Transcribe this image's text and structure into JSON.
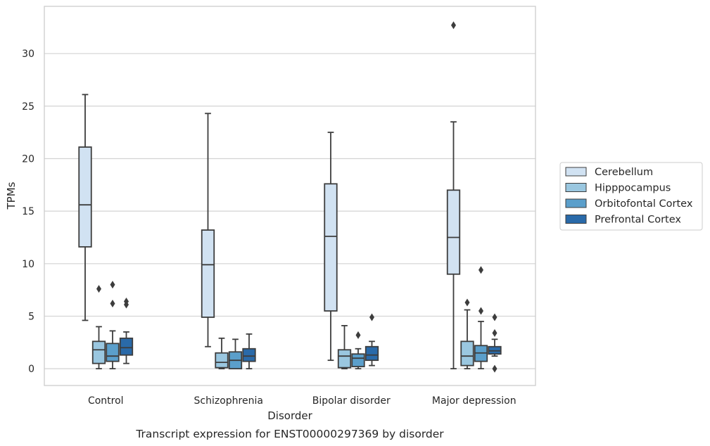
{
  "chart_data": {
    "type": "box",
    "caption": "Transcript expression for ENST00000297369 by disorder",
    "xlabel": "Disorder",
    "ylabel": "TPMs",
    "ylim": [
      -1.6,
      34.5
    ],
    "yticks": [
      0,
      5,
      10,
      15,
      20,
      25,
      30
    ],
    "grid": true,
    "legend_placement": "right",
    "categories": [
      "Control",
      "Schizophrenia",
      "Bipolar disorder",
      "Major depression"
    ],
    "series": [
      {
        "name": "Cerebellum",
        "color": "#d1e2f2",
        "boxes": [
          {
            "whislo": 4.6,
            "q1": 11.6,
            "med": 15.6,
            "q3": 21.1,
            "whishi": 26.1,
            "fliers": []
          },
          {
            "whislo": 2.1,
            "q1": 4.9,
            "med": 9.9,
            "q3": 13.2,
            "whishi": 24.3,
            "fliers": []
          },
          {
            "whislo": 0.8,
            "q1": 5.5,
            "med": 12.6,
            "q3": 17.6,
            "whishi": 22.5,
            "fliers": []
          },
          {
            "whislo": 0.0,
            "q1": 9.0,
            "med": 12.5,
            "q3": 17.0,
            "whishi": 23.5,
            "fliers": [
              32.7
            ]
          }
        ]
      },
      {
        "name": "Hipppocampus",
        "color": "#9ac7e0",
        "boxes": [
          {
            "whislo": 0.0,
            "q1": 0.5,
            "med": 1.8,
            "q3": 2.6,
            "whishi": 4.0,
            "fliers": [
              7.6
            ]
          },
          {
            "whislo": 0.0,
            "q1": 0.1,
            "med": 0.6,
            "q3": 1.5,
            "whishi": 2.9,
            "fliers": []
          },
          {
            "whislo": 0.0,
            "q1": 0.1,
            "med": 1.2,
            "q3": 1.8,
            "whishi": 4.1,
            "fliers": []
          },
          {
            "whislo": 0.0,
            "q1": 0.3,
            "med": 1.2,
            "q3": 2.6,
            "whishi": 5.6,
            "fliers": [
              6.3
            ]
          }
        ]
      },
      {
        "name": "Orbitofontal Cortex",
        "color": "#5b9fcb",
        "boxes": [
          {
            "whislo": 0.0,
            "q1": 0.7,
            "med": 1.2,
            "q3": 2.4,
            "whishi": 3.6,
            "fliers": [
              6.2,
              8.0
            ]
          },
          {
            "whislo": 0.0,
            "q1": 0.0,
            "med": 0.8,
            "q3": 1.6,
            "whishi": 2.8,
            "fliers": []
          },
          {
            "whislo": 0.0,
            "q1": 0.2,
            "med": 1.0,
            "q3": 1.4,
            "whishi": 1.9,
            "fliers": [
              3.2
            ]
          },
          {
            "whislo": 0.0,
            "q1": 0.7,
            "med": 1.5,
            "q3": 2.2,
            "whishi": 4.5,
            "fliers": [
              5.5,
              9.4
            ]
          }
        ]
      },
      {
        "name": "Prefrontal Cortex",
        "color": "#2a6aa9",
        "boxes": [
          {
            "whislo": 0.5,
            "q1": 1.3,
            "med": 2.0,
            "q3": 2.9,
            "whishi": 3.5,
            "fliers": [
              6.1,
              6.4
            ]
          },
          {
            "whislo": 0.0,
            "q1": 0.7,
            "med": 1.2,
            "q3": 1.9,
            "whishi": 3.3,
            "fliers": []
          },
          {
            "whislo": 0.3,
            "q1": 0.8,
            "med": 1.3,
            "q3": 2.1,
            "whishi": 2.6,
            "fliers": [
              4.9
            ]
          },
          {
            "whislo": 1.2,
            "q1": 1.4,
            "med": 1.7,
            "q3": 2.1,
            "whishi": 2.8,
            "fliers": [
              0.0,
              3.4,
              4.9
            ]
          }
        ]
      }
    ]
  }
}
